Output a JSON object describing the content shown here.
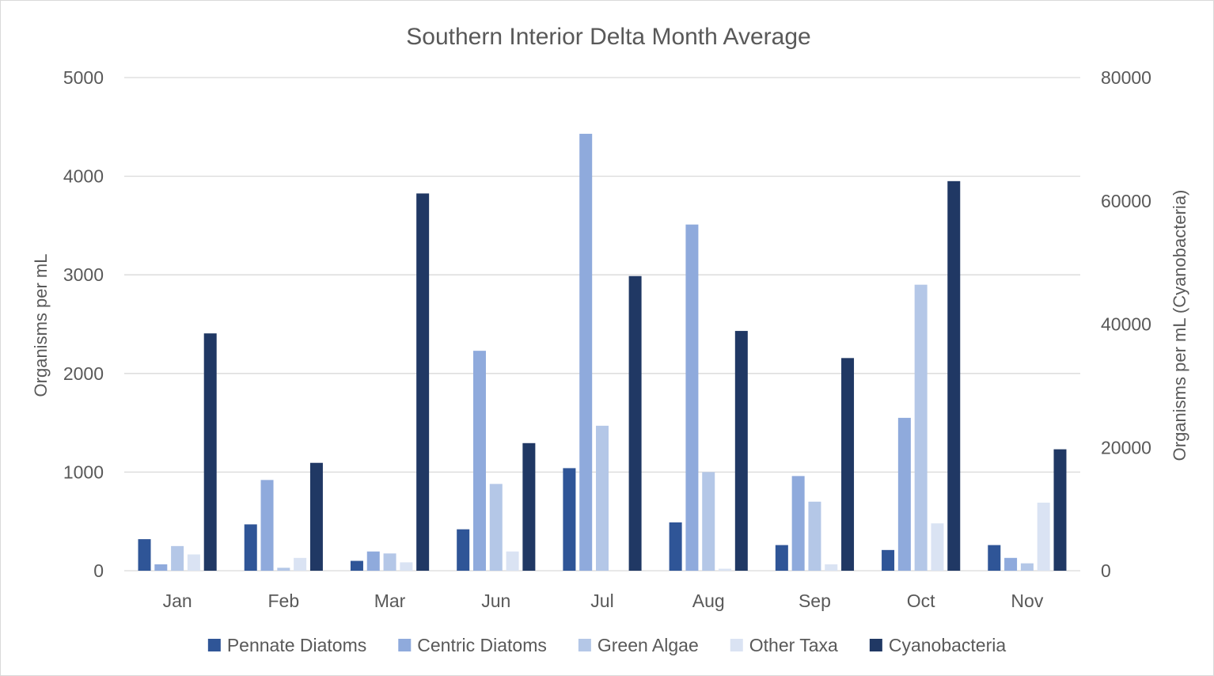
{
  "chart_data": {
    "type": "bar",
    "title": "Southern Interior Delta Month Average",
    "xlabel": "",
    "ylabel": "Organisms per mL",
    "y2label": "Organisms per mL (Cyanobacteria)",
    "categories": [
      "Jan",
      "Feb",
      "Mar",
      "Jun",
      "Jul",
      "Aug",
      "Sep",
      "Oct",
      "Nov"
    ],
    "ylim": [
      0,
      5000
    ],
    "y2lim": [
      0,
      80000
    ],
    "yticks": [
      0,
      1000,
      2000,
      3000,
      4000,
      5000
    ],
    "y2ticks": [
      0,
      20000,
      40000,
      60000,
      80000
    ],
    "grid": true,
    "legend_position": "bottom",
    "series": [
      {
        "name": "Pennate Diatoms",
        "axis": "left",
        "color": "#2f5597",
        "values": [
          320,
          470,
          100,
          420,
          1040,
          490,
          260,
          210,
          260
        ]
      },
      {
        "name": "Centric Diatoms",
        "axis": "left",
        "color": "#8faadc",
        "values": [
          65,
          920,
          195,
          2230,
          4430,
          3510,
          960,
          1550,
          130
        ]
      },
      {
        "name": "Green Algae",
        "axis": "left",
        "color": "#b4c7e7",
        "values": [
          250,
          30,
          175,
          880,
          1470,
          1000,
          700,
          2900,
          75
        ]
      },
      {
        "name": "Other Taxa",
        "axis": "left",
        "color": "#dae3f3",
        "values": [
          165,
          130,
          85,
          195,
          0,
          20,
          65,
          480,
          690
        ]
      },
      {
        "name": "Cyanobacteria",
        "axis": "right",
        "color": "#203864",
        "values": [
          38500,
          17500,
          61200,
          20700,
          47800,
          38900,
          34500,
          63200,
          19700
        ]
      }
    ]
  }
}
